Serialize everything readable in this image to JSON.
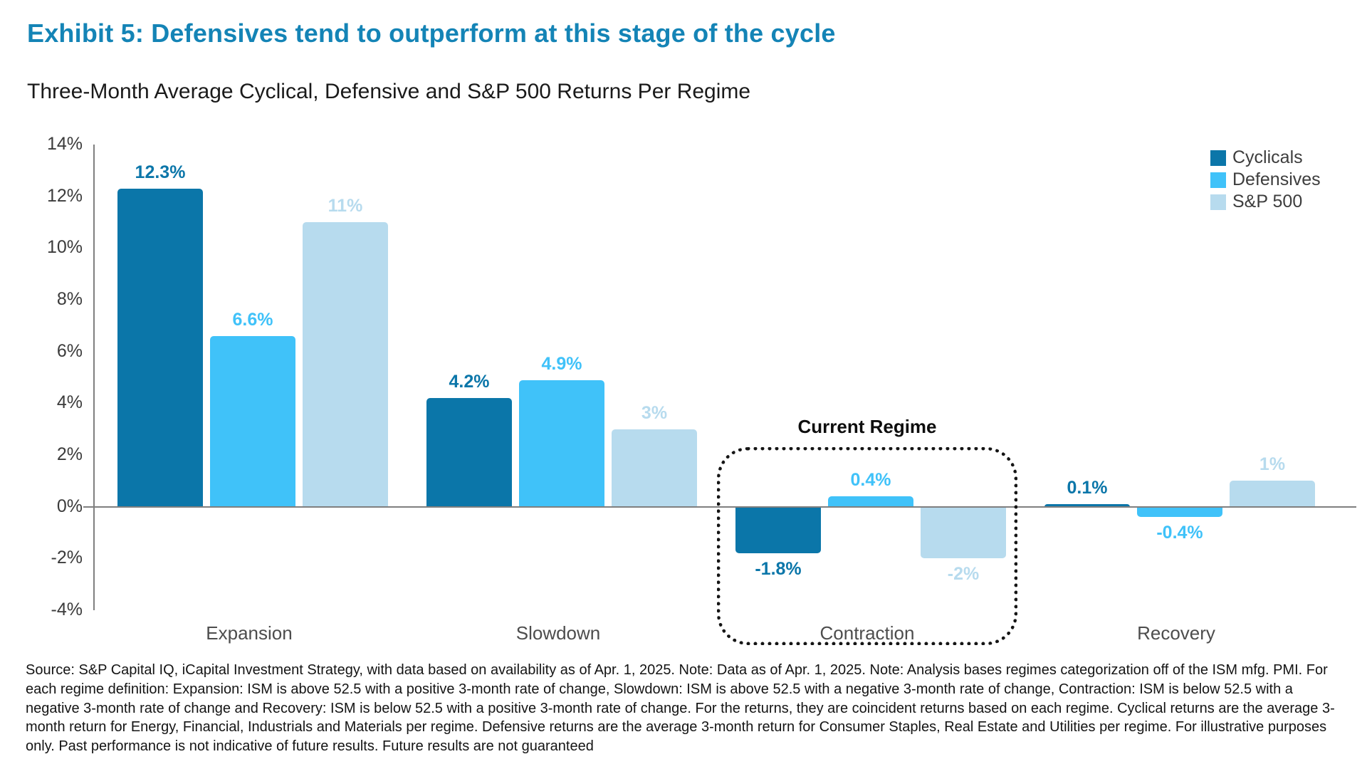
{
  "page": {
    "exhibit_title": "Exhibit 5: Defensives tend to outperform at this stage of the cycle",
    "source_note": "Source: S&P Capital IQ, iCapital Investment Strategy, with data based on availability as of Apr. 1, 2025. Note: Data as of Apr. 1, 2025. Note: Analysis bases regimes categorization off of the ISM mfg. PMI.  For each regime definition: Expansion: ISM is above 52.5 with a positive 3-month rate of change, Slowdown: ISM is above 52.5 with a negative 3-month rate of change, Contraction: ISM is below 52.5 with a negative 3-month rate of change and Recovery: ISM is below 52.5 with a positive 3-month rate of change. For the returns, they are coincident returns based on each regime. Cyclical returns are the average 3-month return for Energy, Financial, Industrials and Materials per regime. Defensive returns are the average 3-month return for Consumer Staples, Real Estate and Utilities per regime. For illustrative purposes only. Past performance is not indicative of future results. Future results are not guaranteed"
  },
  "colors": {
    "title_blue": "#1484b6",
    "cyclicals": "#0b76a9",
    "defensives": "#40c2f9",
    "sp500": "#b7dbee",
    "axis_gray": "#7f7f7f",
    "tick_text": "#3b3b3b",
    "category_text": "#4d4d4d",
    "annotation_text": "#0d0d0d"
  },
  "chart_data": {
    "type": "bar",
    "title": "Three-Month Average Cyclical, Defensive and S&P 500 Returns Per Regime",
    "categories": [
      "Expansion",
      "Slowdown",
      "Contraction",
      "Recovery"
    ],
    "series": [
      {
        "name": "Cyclicals",
        "color": "#0b76a9",
        "values": [
          12.3,
          4.2,
          -1.8,
          0.1
        ],
        "labels": [
          "12.3%",
          "4.2%",
          "-1.8%",
          "0.1%"
        ]
      },
      {
        "name": "Defensives",
        "color": "#40c2f9",
        "values": [
          6.6,
          4.9,
          0.4,
          -0.4
        ],
        "labels": [
          "6.6%",
          "4.9%",
          "0.4%",
          "-0.4%"
        ]
      },
      {
        "name": "S&P 500",
        "color": "#b7dbee",
        "values": [
          11,
          3,
          -2,
          1
        ],
        "labels": [
          "11%",
          "3%",
          "-2%",
          "1%"
        ]
      }
    ],
    "xlabel": "",
    "ylabel": "",
    "ylim": [
      -4,
      14
    ],
    "yticks": [
      {
        "value": 14,
        "label": "14%"
      },
      {
        "value": 12,
        "label": "12%"
      },
      {
        "value": 10,
        "label": "10%"
      },
      {
        "value": 8,
        "label": "8%"
      },
      {
        "value": 6,
        "label": "6%"
      },
      {
        "value": 4,
        "label": "4%"
      },
      {
        "value": 2,
        "label": "2%"
      },
      {
        "value": 0,
        "label": "0%"
      },
      {
        "value": -2,
        "label": "-2%"
      },
      {
        "value": -4,
        "label": "-4%"
      }
    ],
    "grid": false,
    "legend_position": "top-right",
    "annotation": {
      "label": "Current Regime",
      "category": "Contraction"
    }
  }
}
